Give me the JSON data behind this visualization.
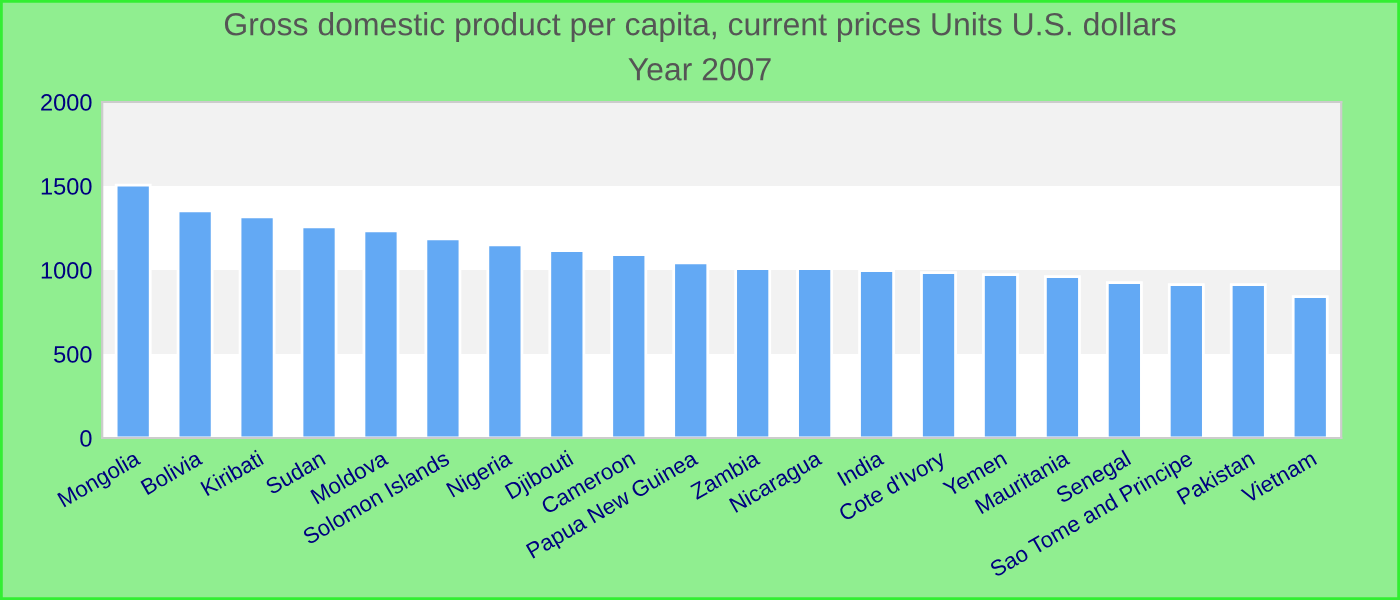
{
  "chart_data": {
    "type": "bar",
    "title": "Gross domestic product per capita, current prices Units U.S. dollars",
    "subtitle": "Year 2007",
    "categories": [
      "Mongolia",
      "Bolivia",
      "Kiribati",
      "Sudan",
      "Moldova",
      "Solomon Islands",
      "Nigeria",
      "Djibouti",
      "Cameroon",
      "Papua New Guinea",
      "Zambia",
      "Nicaragua",
      "India",
      "Cote d'Ivory",
      "Yemen",
      "Mauritania",
      "Senegal",
      "Sao Tome and Principe",
      "Pakistan",
      "Vietnam"
    ],
    "values": [
      1505,
      1352,
      1316,
      1257,
      1233,
      1186,
      1150,
      1115,
      1091,
      1043,
      1008,
      1008,
      996,
      984,
      972,
      960,
      925,
      913,
      913,
      842
    ],
    "color": "#63a9f4",
    "ylim": [
      0,
      2000
    ],
    "yticks": [
      0,
      500,
      1000,
      1500,
      2000
    ],
    "bands": [
      {
        "axis": "y",
        "from": 500,
        "to": 1000,
        "color": "#f2f2f2"
      },
      {
        "axis": "y",
        "from": 1500,
        "to": 2000,
        "color": "#f2f2f2"
      }
    ],
    "grid": false
  }
}
